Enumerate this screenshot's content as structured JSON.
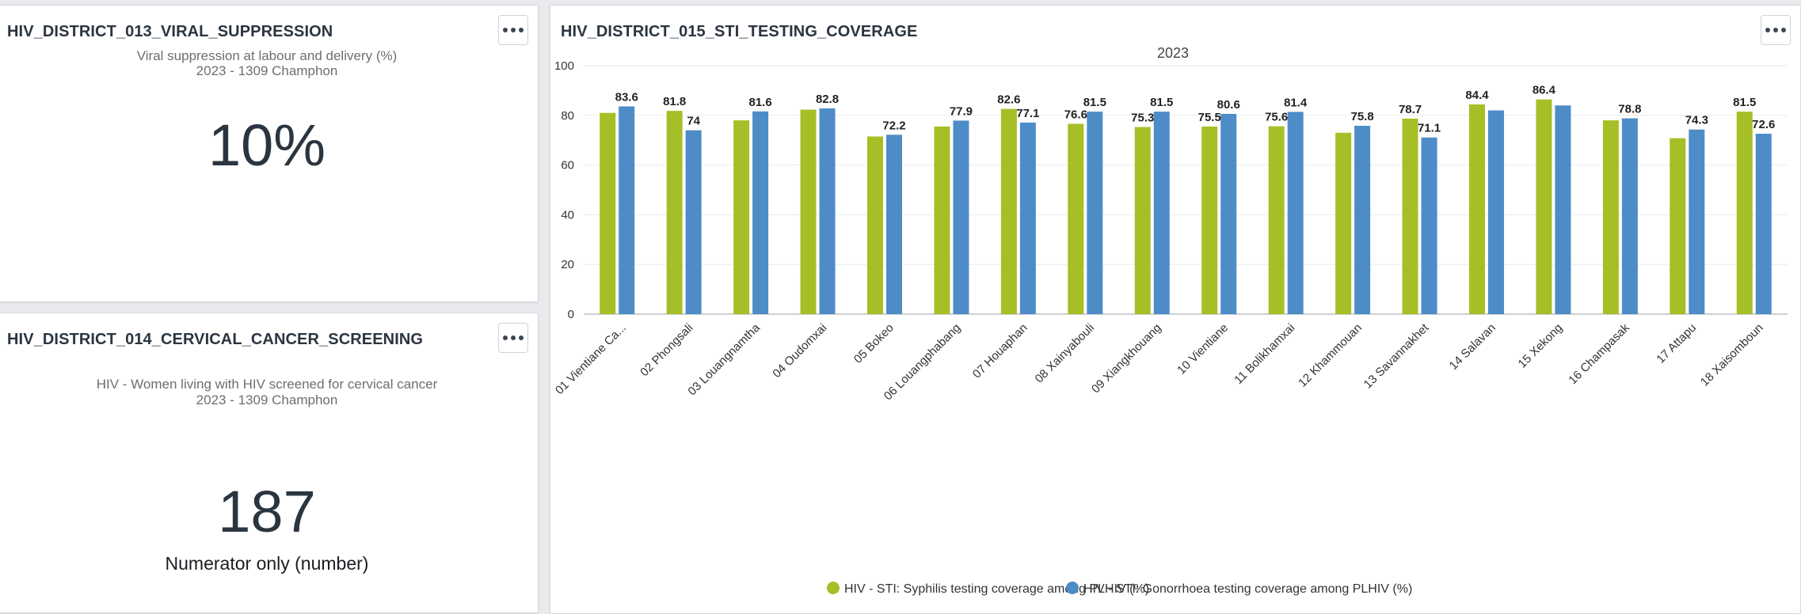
{
  "cards": {
    "viral": {
      "title": "HIV_DISTRICT_013_VIRAL_SUPPRESSION",
      "subtitle": "Viral suppression at labour and delivery (%)",
      "period": "2023 - 1309 Champhon",
      "value": "10%"
    },
    "cervical": {
      "title": "HIV_DISTRICT_014_CERVICAL_CANCER_SCREENING",
      "subtitle": "HIV - Women living with HIV screened for cervical cancer",
      "period": "2023 - 1309 Champhon",
      "value": "187",
      "note": "Numerator only (number)"
    },
    "sti": {
      "title": "HIV_DISTRICT_015_STI_TESTING_COVERAGE"
    }
  },
  "chart_data": {
    "type": "bar",
    "title": "2023",
    "categories": [
      "01 Vientiane Ca...",
      "02 Phongsali",
      "03 Louangnamtha",
      "04 Oudomxai",
      "05 Bokeo",
      "06 Louangphabang",
      "07 Houaphan",
      "08 Xainyabouli",
      "09 Xiangkhouang",
      "10 Vientiane",
      "11 Bolikhamxai",
      "12 Khammouan",
      "13 Savannakhet",
      "14 Salavan",
      "15 Xekong",
      "16 Champasak",
      "17 Attapu",
      "18 Xaisomboun"
    ],
    "series": [
      {
        "name": "HIV - STI: Syphilis testing coverage among PLHIV (%)",
        "color": "#a6bf26",
        "values": [
          81,
          81.8,
          78,
          82.3,
          71.5,
          75.5,
          82.6,
          76.6,
          75.3,
          75.5,
          75.6,
          73,
          78.7,
          84.4,
          86.4,
          78,
          70.8,
          81.5
        ],
        "labels": [
          "",
          "81.8",
          "",
          "",
          "",
          "",
          "82.6",
          "76.6",
          "75.3",
          "75.5",
          "75.6",
          "",
          "78.7",
          "84.4",
          "86.4",
          "",
          "",
          "81.5"
        ]
      },
      {
        "name": "HIV - STI: Gonorrhoea testing coverage among PLHIV (%)",
        "color": "#4e8cc8",
        "values": [
          83.6,
          74,
          81.6,
          82.8,
          72.2,
          77.9,
          77.1,
          81.5,
          81.5,
          80.6,
          81.4,
          75.8,
          71.1,
          82,
          84,
          78.8,
          74.3,
          72.6
        ],
        "labels": [
          "83.6",
          "74",
          "81.6",
          "82.8",
          "72.2",
          "77.9",
          "77.1",
          "81.5",
          "81.5",
          "80.6",
          "81.4",
          "75.8",
          "71.1",
          "",
          "",
          "78.8",
          "74.3",
          "72.6"
        ]
      }
    ],
    "ylim": [
      0,
      100
    ],
    "yticks": [
      "0",
      "20",
      "40",
      "60",
      "80",
      "100"
    ],
    "grid": true,
    "legend_position": "bottom"
  }
}
